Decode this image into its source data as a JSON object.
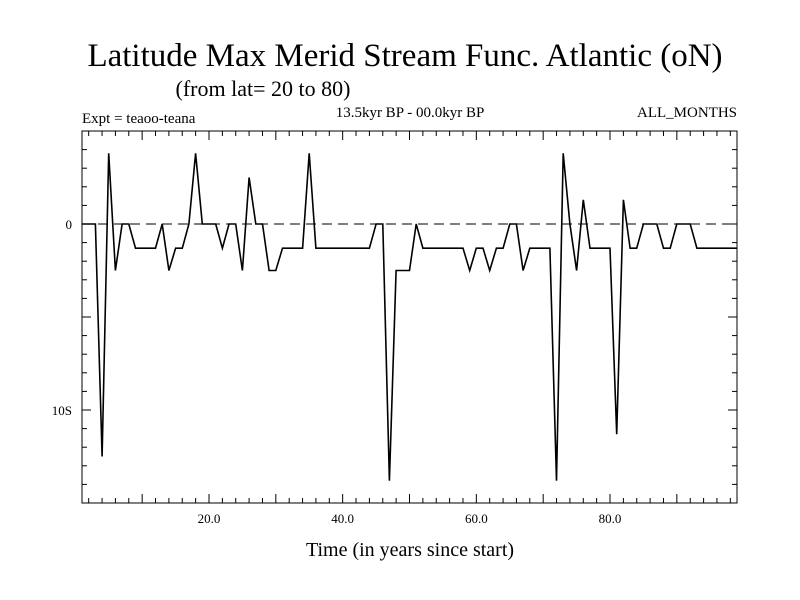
{
  "chart_data": {
    "type": "line",
    "title": "Latitude Max Merid Stream Func. Atlantic (oN)",
    "subtitle": "(from lat= 20 to 80)",
    "left_label": "Expt = teaoo-teana",
    "center_label": "13.5kyr BP - 00.0kyr BP",
    "right_label": "ALL_MONTHS",
    "xlabel": "Time (in years since start)",
    "ylabel": "",
    "xlim": [
      1,
      99
    ],
    "ylim": [
      -15,
      5
    ],
    "x_ticks": [
      {
        "value": 20,
        "label": "20.0"
      },
      {
        "value": 40,
        "label": "40.0"
      },
      {
        "value": 60,
        "label": "60.0"
      },
      {
        "value": 80,
        "label": "80.0"
      }
    ],
    "y_ticks": [
      {
        "value": 0,
        "label": "0"
      },
      {
        "value": -10,
        "label": "10S"
      }
    ],
    "reference_line": 0,
    "series": [
      {
        "name": "Latitude Max Merid Stream Func",
        "x": [
          1,
          2,
          3,
          4,
          5,
          6,
          7,
          8,
          9,
          10,
          11,
          12,
          13,
          14,
          15,
          16,
          17,
          18,
          19,
          20,
          21,
          22,
          23,
          24,
          25,
          26,
          27,
          28,
          29,
          30,
          31,
          32,
          33,
          34,
          35,
          36,
          37,
          38,
          39,
          40,
          41,
          42,
          43,
          44,
          45,
          46,
          47,
          48,
          49,
          50,
          51,
          52,
          53,
          54,
          55,
          56,
          57,
          58,
          59,
          60,
          61,
          62,
          63,
          64,
          65,
          66,
          67,
          68,
          69,
          70,
          71,
          72,
          73,
          74,
          75,
          76,
          77,
          78,
          79,
          80,
          81,
          82,
          83,
          84,
          85,
          86,
          87,
          88,
          89,
          90,
          91,
          92,
          93,
          94,
          95,
          96,
          97,
          98,
          99
        ],
        "y": [
          0,
          0,
          0,
          -12.5,
          3.8,
          -2.5,
          0,
          0,
          -1.3,
          -1.3,
          -1.3,
          -1.3,
          0,
          -2.5,
          -1.3,
          -1.3,
          0,
          3.8,
          0,
          0,
          0,
          -1.3,
          0,
          0,
          -2.5,
          2.5,
          0,
          0,
          -2.5,
          -2.5,
          -1.3,
          -1.3,
          -1.3,
          -1.3,
          3.8,
          -1.3,
          -1.3,
          -1.3,
          -1.3,
          -1.3,
          -1.3,
          -1.3,
          -1.3,
          -1.3,
          0,
          0,
          -13.8,
          -2.5,
          -2.5,
          -2.5,
          0,
          -1.3,
          -1.3,
          -1.3,
          -1.3,
          -1.3,
          -1.3,
          -1.3,
          -2.5,
          -1.3,
          -1.3,
          -2.5,
          -1.3,
          -1.3,
          0,
          0,
          -2.5,
          -1.3,
          -1.3,
          -1.3,
          -1.3,
          -13.8,
          3.8,
          0,
          -2.5,
          1.3,
          -1.3,
          -1.3,
          -1.3,
          -1.3,
          -11.3,
          1.3,
          -1.3,
          -1.3,
          0,
          0,
          0,
          -1.3,
          -1.3,
          0,
          0,
          0,
          -1.3,
          -1.3,
          -1.3,
          -1.3,
          -1.3,
          -1.3,
          -1.3
        ]
      }
    ]
  }
}
